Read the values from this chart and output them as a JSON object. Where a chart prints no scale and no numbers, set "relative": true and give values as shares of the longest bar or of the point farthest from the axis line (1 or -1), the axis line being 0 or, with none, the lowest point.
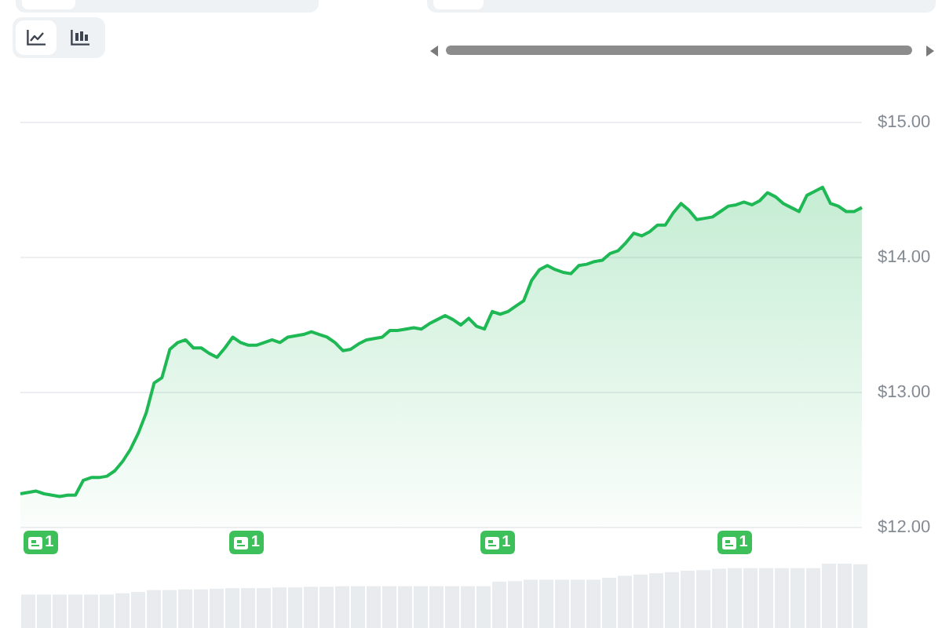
{
  "chart_data": [
    {
      "type": "area",
      "categories": [
        null,
        null,
        null,
        null,
        null,
        null,
        null,
        null,
        null,
        null,
        null,
        null,
        null,
        null,
        null,
        null,
        null,
        null,
        null,
        null,
        null,
        null,
        null,
        null,
        null,
        null,
        null,
        null,
        null,
        null,
        null,
        null,
        null,
        null,
        null,
        null,
        null,
        null,
        null,
        null,
        null,
        null,
        null,
        null,
        null,
        null,
        null,
        null,
        null,
        null,
        null,
        null,
        null,
        null,
        null,
        null,
        null,
        null,
        null,
        null,
        null,
        null,
        null,
        null,
        null,
        null,
        null,
        null,
        null,
        null,
        null,
        null,
        null,
        null,
        null,
        null,
        null,
        null,
        null,
        null,
        null,
        null,
        null,
        null,
        null,
        null,
        null,
        null,
        null,
        null,
        null,
        null,
        null,
        null,
        null,
        null,
        null,
        null,
        null,
        null,
        null,
        null,
        null,
        null,
        null,
        null,
        null,
        null
      ],
      "values": [
        12.25,
        12.26,
        12.27,
        12.25,
        12.24,
        12.23,
        12.24,
        12.24,
        12.35,
        12.37,
        12.37,
        12.38,
        12.42,
        12.49,
        12.58,
        12.7,
        12.85,
        13.07,
        13.11,
        13.32,
        13.37,
        13.39,
        13.33,
        13.33,
        13.29,
        13.26,
        13.33,
        13.41,
        13.37,
        13.35,
        13.35,
        13.37,
        13.39,
        13.37,
        13.41,
        13.42,
        13.43,
        13.45,
        13.43,
        13.41,
        13.37,
        13.31,
        13.32,
        13.36,
        13.39,
        13.4,
        13.41,
        13.46,
        13.46,
        13.47,
        13.48,
        13.47,
        13.51,
        13.54,
        13.57,
        13.54,
        13.5,
        13.55,
        13.49,
        13.47,
        13.6,
        13.58,
        13.6,
        13.64,
        13.68,
        13.83,
        13.91,
        13.94,
        13.91,
        13.89,
        13.88,
        13.94,
        13.95,
        13.97,
        13.98,
        14.03,
        14.05,
        14.11,
        14.18,
        14.16,
        14.19,
        14.24,
        14.24,
        14.33,
        14.4,
        14.35,
        14.28,
        14.29,
        14.3,
        14.34,
        14.38,
        14.39,
        14.41,
        14.39,
        14.42,
        14.48,
        14.45,
        14.4,
        14.37,
        14.34,
        14.46,
        14.49,
        14.52,
        14.4,
        14.38,
        14.34,
        14.34,
        14.37
      ],
      "color": "#1eb854",
      "ylim": [
        12,
        15
      ],
      "yticks": [
        {
          "value": 12,
          "label": "$12.00"
        },
        {
          "value": 13,
          "label": "$13.00"
        },
        {
          "value": 14,
          "label": "$14.00"
        },
        {
          "value": 15,
          "label": "$15.00"
        }
      ],
      "grid": "y",
      "tick_labels": "y",
      "annotations": [
        "1",
        "1",
        "1",
        "1"
      ]
    },
    {
      "type": "bar",
      "categories": [
        null,
        null,
        null,
        null,
        null,
        null,
        null,
        null,
        null,
        null,
        null,
        null,
        null,
        null,
        null,
        null,
        null,
        null,
        null,
        null,
        null,
        null,
        null,
        null,
        null,
        null,
        null,
        null,
        null,
        null,
        null,
        null,
        null,
        null,
        null,
        null,
        null,
        null,
        null,
        null,
        null,
        null,
        null,
        null,
        null,
        null,
        null,
        null,
        null,
        null,
        null,
        null,
        null,
        null
      ],
      "values": [
        0.52,
        0.52,
        0.52,
        0.52,
        0.52,
        0.52,
        0.54,
        0.56,
        0.59,
        0.59,
        0.6,
        0.6,
        0.61,
        0.62,
        0.62,
        0.62,
        0.63,
        0.63,
        0.64,
        0.64,
        0.65,
        0.65,
        0.65,
        0.65,
        0.65,
        0.65,
        0.65,
        0.65,
        0.65,
        0.65,
        0.72,
        0.73,
        0.75,
        0.75,
        0.75,
        0.75,
        0.75,
        0.78,
        0.81,
        0.83,
        0.85,
        0.87,
        0.89,
        0.9,
        0.92,
        0.93,
        0.93,
        0.93,
        0.93,
        0.93,
        0.93,
        1,
        1,
        0.99
      ],
      "color": "#e9ecef",
      "relative": true,
      "tick_labels": false
    }
  ]
}
